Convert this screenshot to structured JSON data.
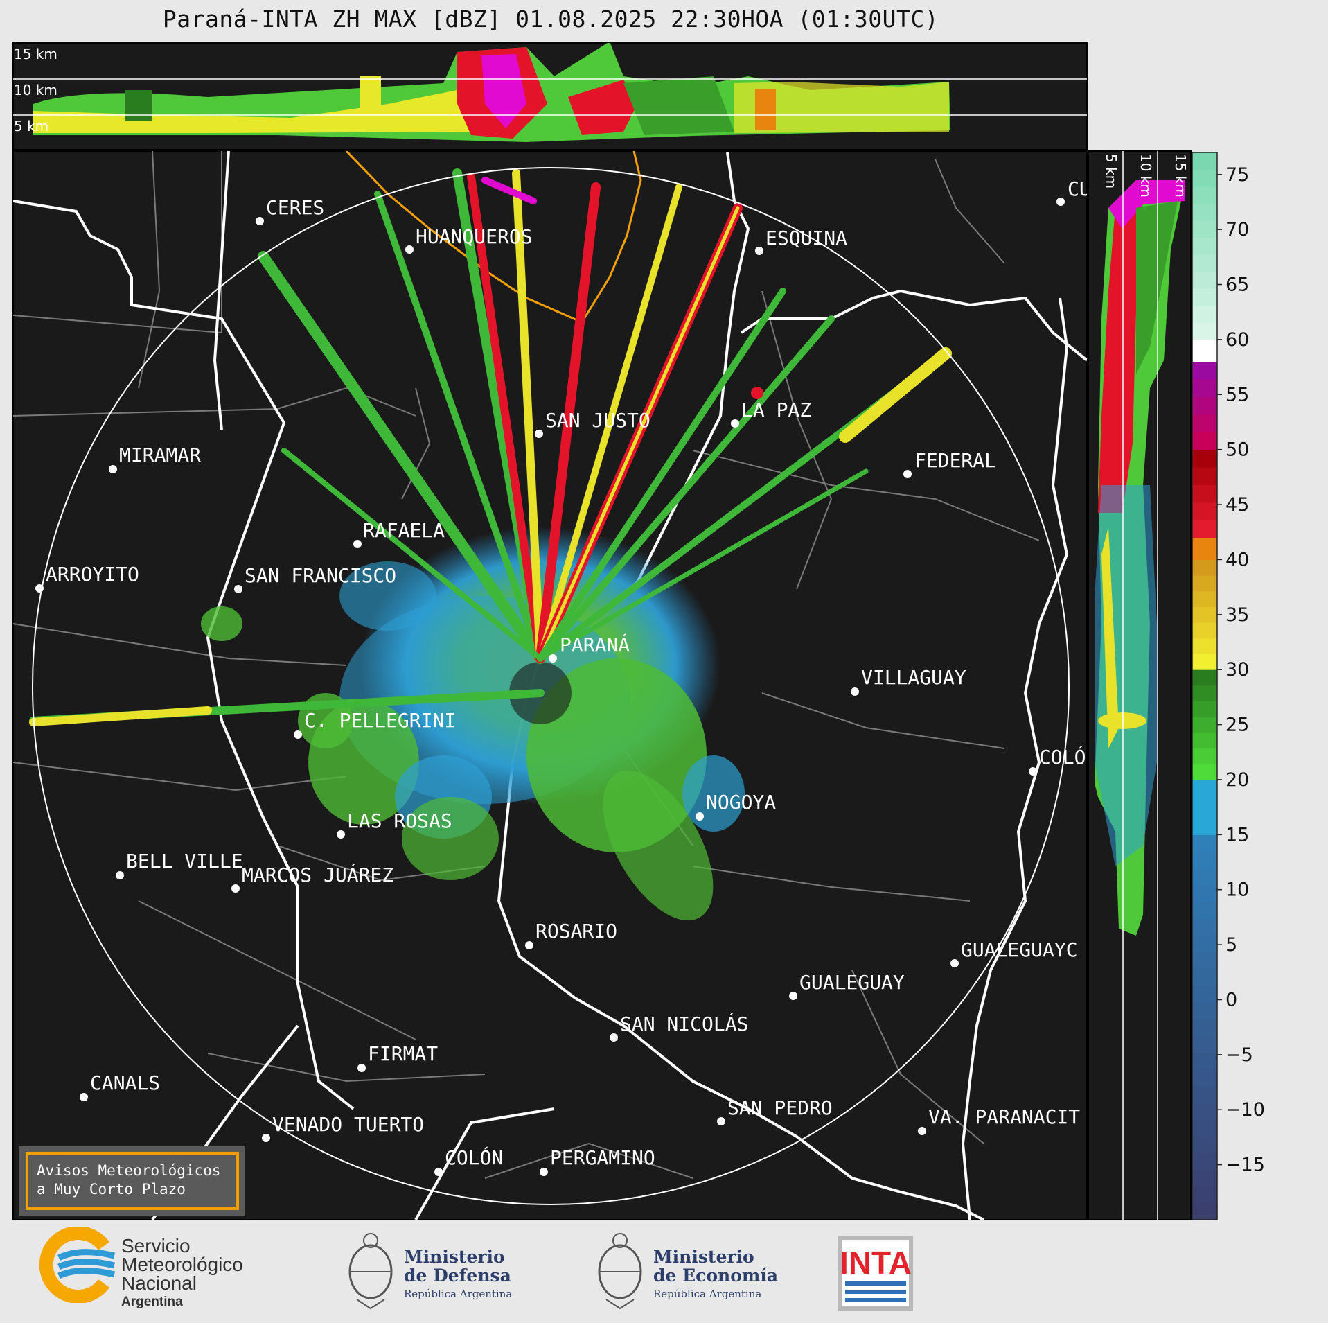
{
  "title": "Paraná-INTA ZH MAX [dBZ] 01.08.2025 22:30HOA (01:30UTC)",
  "top_panel": {
    "height_labels": [
      "15 km",
      "10 km",
      "5 km"
    ]
  },
  "side_panel": {
    "height_labels": [
      "5 km",
      "10 km",
      "15 km"
    ]
  },
  "colorbar": {
    "unit": "dBZ",
    "ticks": [
      "75",
      "70",
      "65",
      "60",
      "55",
      "50",
      "45",
      "40",
      "35",
      "30",
      "25",
      "20",
      "15",
      "10",
      "5",
      "0",
      "−5",
      "−10",
      "−15"
    ],
    "levels": [
      {
        "from": -20,
        "to": 15,
        "color_low": "#3b3f6e",
        "color_high": "#2f7fb8"
      },
      {
        "from": 15,
        "to": 20,
        "color": "#29a8d8"
      },
      {
        "from": 20,
        "to": 30,
        "color_low": "#4fdc3a",
        "color_high": "#2a7d1f"
      },
      {
        "from": 30,
        "to": 40,
        "color_low": "#f2ee30",
        "color_high": "#d39a1c"
      },
      {
        "from": 40,
        "to": 42,
        "color": "#e8850e"
      },
      {
        "from": 42,
        "to": 50,
        "color_low": "#e41b2f",
        "color_high": "#a8000a"
      },
      {
        "from": 50,
        "to": 58,
        "color_low": "#c8005a",
        "color_high": "#9a0aa0"
      },
      {
        "from": 58,
        "to": 60,
        "color": "#ffffff"
      },
      {
        "from": 60,
        "to": 77,
        "color_low": "#d8f5e8",
        "color_high": "#7ad8b0"
      }
    ]
  },
  "cities": [
    {
      "name": "CERES"
    },
    {
      "name": "HUANQUEROS"
    },
    {
      "name": "ESQUINA"
    },
    {
      "name": "CU"
    },
    {
      "name": "SAN JUSTO"
    },
    {
      "name": "LA PAZ"
    },
    {
      "name": "MIRAMAR"
    },
    {
      "name": "FEDERAL"
    },
    {
      "name": "RAFAELA"
    },
    {
      "name": "ARROYITO"
    },
    {
      "name": "SAN FRANCISCO"
    },
    {
      "name": "PARANÁ"
    },
    {
      "name": "VILLAGUAY"
    },
    {
      "name": "C. PELLEGRINI"
    },
    {
      "name": "COLÓ"
    },
    {
      "name": "NOGOYA"
    },
    {
      "name": "LAS ROSAS"
    },
    {
      "name": "BELL VILLE"
    },
    {
      "name": "MARCOS JUÁREZ"
    },
    {
      "name": "ROSARIO"
    },
    {
      "name": "GUALEGUAYC"
    },
    {
      "name": "GUALEGUAY"
    },
    {
      "name": "SAN NICOLÁS"
    },
    {
      "name": "FIRMAT"
    },
    {
      "name": "CANALS"
    },
    {
      "name": "SAN PEDRO"
    },
    {
      "name": "VENADO TUERTO"
    },
    {
      "name": "VA. PARANACIT"
    },
    {
      "name": "COLÓN"
    },
    {
      "name": "PERGAMINO"
    }
  ],
  "notice": {
    "line1": "Avisos Meteorológicos",
    "line2": "a Muy Corto Plazo"
  },
  "logos": {
    "smn": {
      "line1": "Servicio",
      "line2": "Meteorológico",
      "line3": "Nacional",
      "line4": "Argentina",
      "colors": [
        "#f7a800",
        "#2e9ad6"
      ]
    },
    "defensa": {
      "line1": "Ministerio",
      "line2": "de Defensa",
      "line3": "República Argentina"
    },
    "economia": {
      "line1": "Ministerio",
      "line2": "de Economía",
      "line3": "República Argentina"
    },
    "inta": {
      "text": "INTA",
      "color": "#e3232c"
    }
  },
  "colors": {
    "map_background": "#1a1a1a",
    "range_ring": "#ffffff",
    "border": "#ffffff",
    "district_lines": "#7a7a7a",
    "orange_area": "#f5a000"
  }
}
